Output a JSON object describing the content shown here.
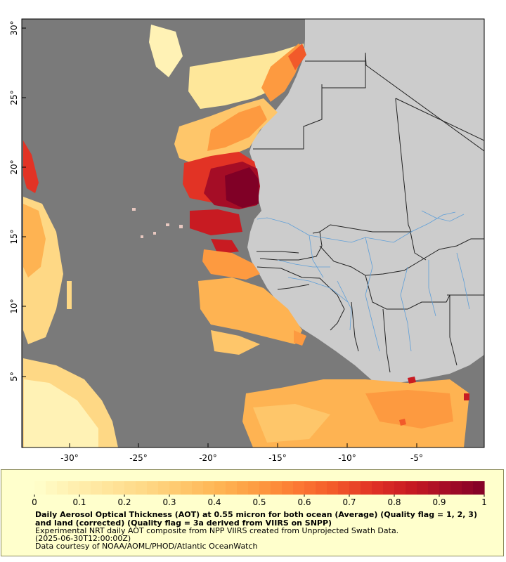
{
  "map": {
    "lat_ticks": [
      "30°",
      "25°",
      "20°",
      "15°",
      "10°",
      "5°"
    ],
    "lon_ticks": [
      "-30°",
      "-25°",
      "-20°",
      "-15°",
      "-10°",
      "-5°"
    ],
    "colors": {
      "no_data": "#7a7a7a",
      "land": "#cccccc",
      "border": "#222222",
      "river": "#5f9fd8",
      "frame": "#000000"
    }
  },
  "legend": {
    "tick_labels": [
      "0",
      "0.1",
      "0.2",
      "0.3",
      "0.4",
      "0.5",
      "0.6",
      "0.7",
      "0.8",
      "0.9",
      "1"
    ],
    "colors": [
      "#ffffcc",
      "#fff0b0",
      "#ffe49a",
      "#fed885",
      "#fec66a",
      "#feb352",
      "#fd9a40",
      "#fc7a33",
      "#f25a2a",
      "#e23325",
      "#c81b22",
      "#a50d26",
      "#800026"
    ],
    "title": "Daily Aerosol Optical Thickness (AOT) at 0.55 micron for both ocean (Average) (Quality flag = 1, 2, 3) and land (corrected) (Quality flag = 3a derived from VIIRS on SNPP)",
    "description": "Experimental NRT daily AOT composite from NPP VIIRS created from Unprojected Swath Data.",
    "date": "(2025-06-30T12:00:00Z)",
    "credit": "Data courtesy of NOAA/AOML/PHOD/Atlantic OceanWatch"
  }
}
